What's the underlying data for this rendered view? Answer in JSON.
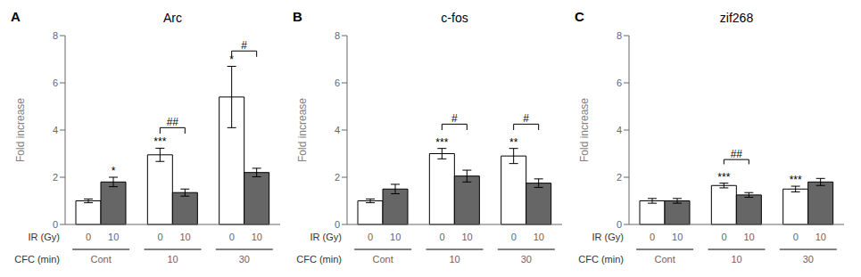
{
  "chart_data": [
    {
      "type": "bar",
      "label": "A",
      "title": "Arc",
      "ylabel": "Fold increase",
      "x_series_label": "IR (Gy)",
      "x_category_label": "CFC (min)",
      "categories": [
        "Cont",
        "10",
        "30"
      ],
      "series": [
        {
          "name": "0",
          "color": "#ffffff",
          "values": [
            1.0,
            2.95,
            5.4
          ],
          "errors": [
            0.08,
            0.28,
            1.3
          ]
        },
        {
          "name": "10",
          "color": "#666666",
          "values": [
            1.8,
            1.35,
            2.2
          ],
          "errors": [
            0.2,
            0.15,
            0.18
          ]
        }
      ],
      "ylim": [
        0,
        8
      ],
      "yticks": [
        0,
        2,
        4,
        6,
        8
      ],
      "annotations": [
        {
          "series": "10",
          "category": "Cont",
          "text": "*"
        },
        {
          "series": "0",
          "category": "10",
          "text": "***"
        },
        {
          "series": "0",
          "category": "30",
          "text": "*"
        }
      ],
      "brackets": [
        {
          "category": "10",
          "y": 3.85,
          "height": 0.25,
          "text": "##"
        },
        {
          "category": "30",
          "y": 7.1,
          "height": 0.25,
          "text": "#"
        }
      ]
    },
    {
      "type": "bar",
      "label": "B",
      "title": "c-fos",
      "ylabel": "Fold increase",
      "x_series_label": "IR (Gy)",
      "x_category_label": "CFC (min)",
      "categories": [
        "Cont",
        "10",
        "30"
      ],
      "series": [
        {
          "name": "0",
          "color": "#ffffff",
          "values": [
            1.0,
            3.0,
            2.9
          ],
          "errors": [
            0.08,
            0.22,
            0.32
          ]
        },
        {
          "name": "10",
          "color": "#666666",
          "values": [
            1.5,
            2.05,
            1.75
          ],
          "errors": [
            0.2,
            0.25,
            0.18
          ]
        }
      ],
      "ylim": [
        0,
        8
      ],
      "yticks": [
        0,
        2,
        4,
        6,
        8
      ],
      "annotations": [
        {
          "series": "0",
          "category": "10",
          "text": "***"
        },
        {
          "series": "0",
          "category": "30",
          "text": "**"
        }
      ],
      "brackets": [
        {
          "category": "10",
          "y": 4.0,
          "height": 0.25,
          "text": "#"
        },
        {
          "category": "30",
          "y": 4.0,
          "height": 0.25,
          "text": "#"
        }
      ]
    },
    {
      "type": "bar",
      "label": "C",
      "title": "zif268",
      "ylabel": "Fold increase",
      "x_series_label": "IR (Gy)",
      "x_category_label": "CFC (min)",
      "categories": [
        "Cont",
        "10",
        "30"
      ],
      "series": [
        {
          "name": "0",
          "color": "#ffffff",
          "values": [
            1.0,
            1.65,
            1.5
          ],
          "errors": [
            0.1,
            0.1,
            0.12
          ]
        },
        {
          "name": "10",
          "color": "#666666",
          "values": [
            1.0,
            1.25,
            1.8
          ],
          "errors": [
            0.1,
            0.1,
            0.15
          ]
        }
      ],
      "ylim": [
        0,
        8
      ],
      "yticks": [
        0,
        2,
        4,
        6,
        8
      ],
      "annotations": [
        {
          "series": "0",
          "category": "10",
          "text": "***"
        },
        {
          "series": "0",
          "category": "30",
          "text": "***"
        }
      ],
      "brackets": [
        {
          "category": "10",
          "y": 2.55,
          "height": 0.2,
          "text": "##"
        }
      ]
    }
  ]
}
